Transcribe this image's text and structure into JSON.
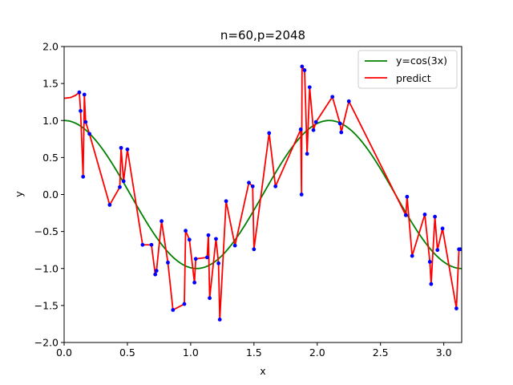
{
  "chart_data": {
    "type": "line",
    "title": "n=60,p=2048",
    "xlabel": "x",
    "ylabel": "y",
    "xlim": [
      0.0,
      3.1416
    ],
    "ylim": [
      -2.0,
      2.0
    ],
    "xticks": [
      "0.0",
      "0.5",
      "1.0",
      "1.5",
      "2.0",
      "2.5",
      "3.0"
    ],
    "xtick_values": [
      0.0,
      0.5,
      1.0,
      1.5,
      2.0,
      2.5,
      3.0
    ],
    "yticks": [
      "−2.0",
      "−1.5",
      "−1.0",
      "−0.5",
      "0.0",
      "0.5",
      "1.0",
      "1.5",
      "2.0"
    ],
    "ytick_values": [
      -2.0,
      -1.5,
      -1.0,
      -0.5,
      0.0,
      0.5,
      1.0,
      1.5,
      2.0
    ],
    "grid": false,
    "legend_position": "top-right",
    "series": [
      {
        "name": "y=cos(3x)",
        "color": "#008000",
        "function": "cos(3x)"
      },
      {
        "name": "predict",
        "color": "#ff0000"
      }
    ],
    "samples": {
      "color": "#0000ff",
      "x": [
        0.12,
        0.13,
        0.15,
        0.16,
        0.17,
        0.2,
        0.36,
        0.44,
        0.45,
        0.47,
        0.5,
        0.62,
        0.69,
        0.72,
        0.73,
        0.77,
        0.82,
        0.86,
        0.95,
        0.96,
        0.99,
        1.03,
        1.04,
        1.13,
        1.14,
        1.15,
        1.2,
        1.22,
        1.23,
        1.28,
        1.35,
        1.46,
        1.49,
        1.5,
        1.62,
        1.67,
        1.87,
        1.876,
        1.88,
        1.9,
        1.92,
        1.94,
        1.97,
        1.99,
        2.12,
        2.18,
        2.19,
        2.25,
        2.7,
        2.71,
        2.75,
        2.85,
        2.89,
        2.9,
        2.93,
        2.95,
        2.99,
        3.1,
        3.12,
        3.13
      ],
      "y": [
        1.38,
        1.13,
        0.24,
        1.35,
        0.98,
        0.82,
        -0.14,
        0.1,
        0.63,
        0.18,
        0.61,
        -0.68,
        -0.68,
        -1.08,
        -1.03,
        -0.36,
        -0.92,
        -1.56,
        -1.48,
        -0.49,
        -0.61,
        -1.19,
        -0.87,
        -0.85,
        -0.55,
        -1.4,
        -0.6,
        -0.93,
        -1.69,
        -0.09,
        -0.69,
        0.16,
        0.11,
        -0.74,
        0.83,
        0.11,
        0.88,
        0.0,
        1.73,
        1.68,
        0.55,
        1.45,
        0.87,
        0.98,
        1.32,
        0.96,
        0.84,
        1.26,
        -0.28,
        -0.03,
        -0.83,
        -0.27,
        -0.91,
        -1.21,
        -0.3,
        -0.75,
        -0.46,
        -1.54,
        -0.74,
        -0.74
      ]
    },
    "predict_extra": {
      "x": [
        0.0,
        0.05,
        0.09
      ],
      "y": [
        1.3,
        1.31,
        1.34
      ]
    }
  },
  "legend": {
    "items": [
      {
        "label": "y=cos(3x)",
        "color": "#008000"
      },
      {
        "label": "predict",
        "color": "#ff0000"
      }
    ]
  }
}
